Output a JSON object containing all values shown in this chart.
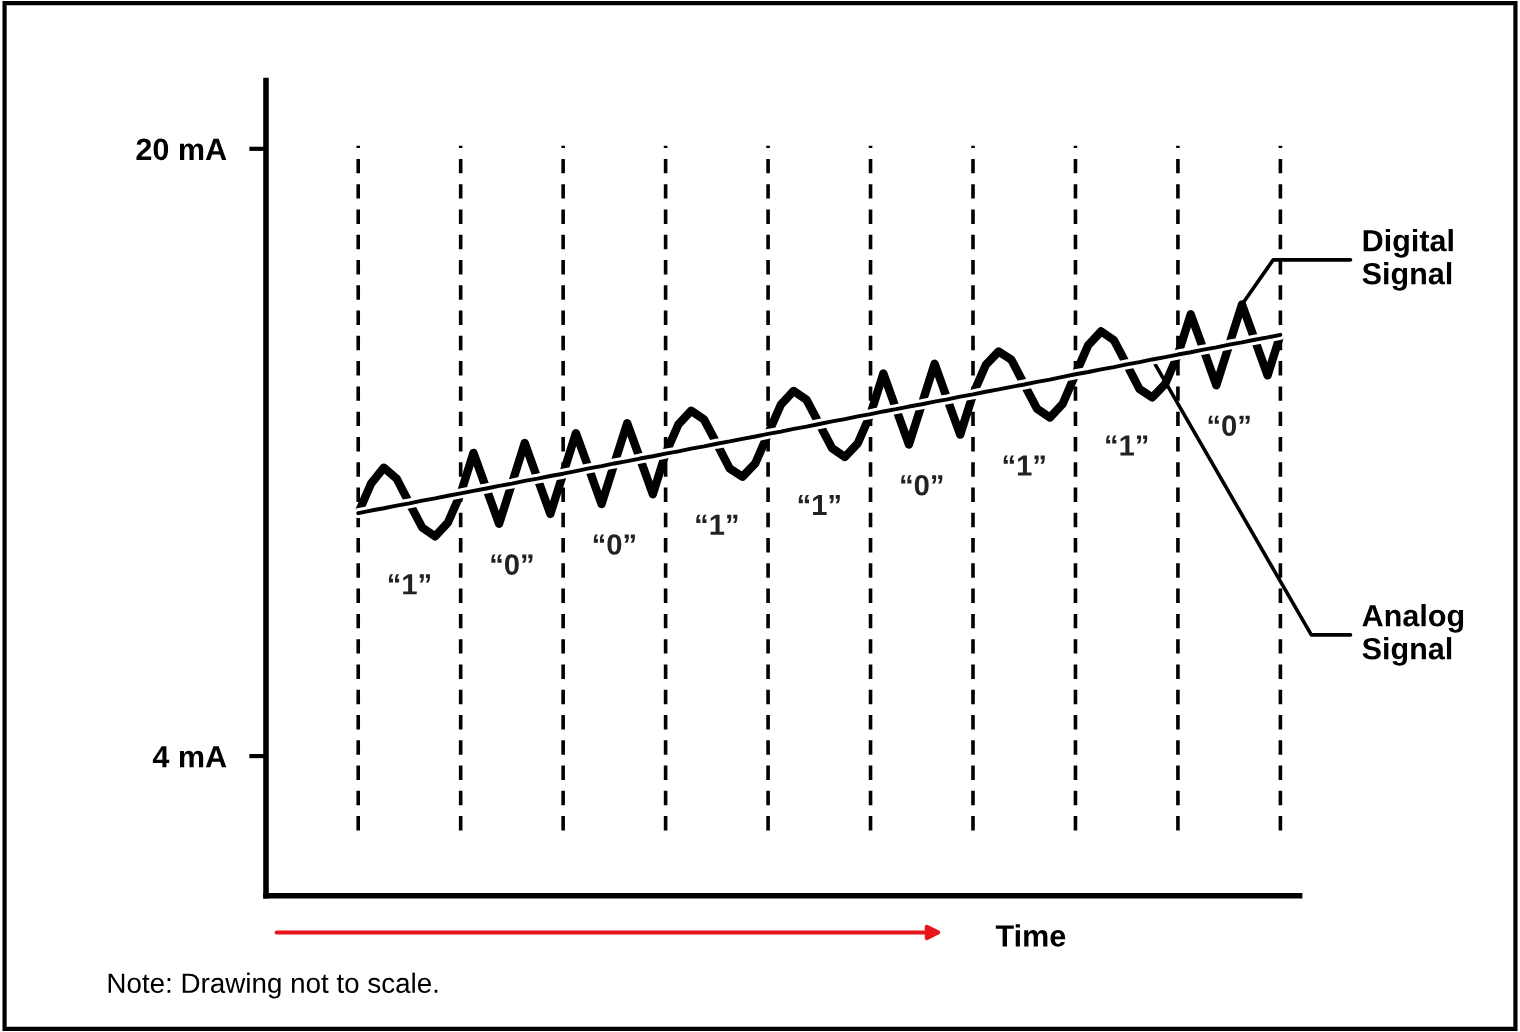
{
  "chart_data": {
    "type": "line",
    "xlabel": "Time",
    "categories": [
      null,
      null,
      null,
      null,
      null,
      null,
      null,
      null,
      null,
      null,
      null,
      null,
      null,
      null,
      null,
      null,
      null,
      null,
      null,
      null,
      null,
      null,
      null,
      null,
      null,
      null,
      null,
      null,
      null,
      null,
      null,
      null,
      null,
      null,
      null,
      null,
      null,
      null,
      null,
      null,
      null,
      null,
      null,
      null,
      null,
      null,
      null,
      null,
      null,
      null,
      null,
      null,
      null,
      null,
      null,
      null,
      null,
      null,
      null,
      null,
      null,
      null,
      null,
      null,
      null,
      null,
      null,
      null,
      null,
      null,
      null,
      null,
      null
    ],
    "ylim": [
      0.32,
      21.8
    ],
    "yticks": [
      {
        "value": 20,
        "label": "20 mA"
      },
      {
        "value": 4,
        "label": "4 mA"
      }
    ],
    "tick_labels": "y",
    "grid": "x",
    "legend": false,
    "marker": "none",
    "series": [
      {
        "name": "Digital Signal",
        "color": "#000000",
        "line_style": "solid",
        "values": [
          10.4,
          11.18,
          11.6,
          11.31,
          10.66,
          10.02,
          9.79,
          10.15,
          10.92,
          11.99,
          11.05,
          10.12,
          11.18,
          12.25,
          11.31,
          10.38,
          11.44,
          12.51,
          11.58,
          10.64,
          11.71,
          12.77,
          11.84,
          10.9,
          11.97,
          12.74,
          13.1,
          12.87,
          12.23,
          11.58,
          11.36,
          11.71,
          12.49,
          13.26,
          13.62,
          13.39,
          12.75,
          12.11,
          11.88,
          12.24,
          13.01,
          14.08,
          13.14,
          12.21,
          13.27,
          14.34,
          13.4,
          12.47,
          13.53,
          14.31,
          14.66,
          14.44,
          13.79,
          13.15,
          12.92,
          13.28,
          14.06,
          14.83,
          15.19,
          14.96,
          14.32,
          13.67,
          13.45,
          13.8,
          14.58,
          15.64,
          14.71,
          13.77,
          14.84,
          15.9,
          14.97,
          14.03,
          15.1
        ]
      },
      {
        "name": "Analog Signal",
        "color": "#000000",
        "line_style": "solid",
        "values": [
          10.4,
          10.47,
          10.53,
          10.6,
          10.66,
          10.73,
          10.79,
          10.86,
          10.92,
          10.99,
          11.05,
          11.12,
          11.18,
          11.25,
          11.31,
          11.38,
          11.44,
          11.51,
          11.58,
          11.64,
          11.71,
          11.77,
          11.84,
          11.9,
          11.97,
          12.03,
          12.1,
          12.16,
          12.23,
          12.29,
          12.36,
          12.42,
          12.49,
          12.55,
          12.62,
          12.68,
          12.75,
          12.82,
          12.88,
          12.95,
          13.01,
          13.08,
          13.14,
          13.21,
          13.27,
          13.34,
          13.4,
          13.47,
          13.53,
          13.6,
          13.66,
          13.73,
          13.79,
          13.86,
          13.92,
          13.99,
          14.06,
          14.12,
          14.19,
          14.25,
          14.32,
          14.38,
          14.45,
          14.51,
          14.58,
          14.64,
          14.71,
          14.77,
          14.84,
          14.9,
          14.97,
          15.03,
          15.1
        ]
      }
    ],
    "annotations": [
      "“1”",
      "“0”",
      "“0”",
      "“1”",
      "“1”",
      "“0”",
      "“1”",
      "“1”",
      "“0”",
      "Note: Drawing not to scale."
    ]
  }
}
